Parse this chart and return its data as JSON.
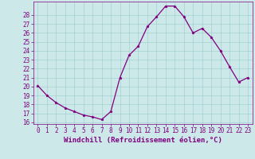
{
  "x": [
    0,
    1,
    2,
    3,
    4,
    5,
    6,
    7,
    8,
    9,
    10,
    11,
    12,
    13,
    14,
    15,
    16,
    17,
    18,
    19,
    20,
    21,
    22,
    23
  ],
  "y": [
    20.1,
    19.0,
    18.2,
    17.6,
    17.2,
    16.8,
    16.6,
    16.3,
    17.2,
    21.0,
    23.5,
    24.5,
    26.7,
    27.8,
    29.0,
    29.0,
    27.8,
    26.0,
    26.5,
    25.5,
    24.0,
    22.2,
    20.5,
    21.0
  ],
  "line_color": "#800080",
  "marker": "*",
  "bg_color": "#cce8e8",
  "grid_color": "#99cccc",
  "xlabel": "Windchill (Refroidissement éolien,°C)",
  "ylim_min": 16,
  "ylim_max": 29,
  "xlim_min": 0,
  "xlim_max": 23,
  "yticks": [
    16,
    17,
    18,
    19,
    20,
    21,
    22,
    23,
    24,
    25,
    26,
    27,
    28
  ],
  "xticks": [
    0,
    1,
    2,
    3,
    4,
    5,
    6,
    7,
    8,
    9,
    10,
    11,
    12,
    13,
    14,
    15,
    16,
    17,
    18,
    19,
    20,
    21,
    22,
    23
  ],
  "tick_color": "#800080",
  "tick_fontsize": 5.5,
  "xlabel_fontsize": 6.5,
  "label_color": "#800080",
  "spine_color": "#800080",
  "marker_size": 2.5,
  "line_width": 0.9
}
